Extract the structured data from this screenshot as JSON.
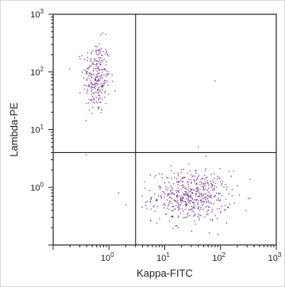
{
  "chart_data": {
    "type": "scatter",
    "title": "",
    "xlabel": "Kappa-FITC",
    "ylabel": "Lambda-PE",
    "x_scale": "log",
    "y_scale": "log",
    "xlim": [
      0.1,
      1000
    ],
    "ylim": [
      0.1,
      1000
    ],
    "grid": false,
    "x_ticks": [
      {
        "base": "10",
        "exp": "0",
        "value": 1
      },
      {
        "base": "10",
        "exp": "1",
        "value": 10
      },
      {
        "base": "10",
        "exp": "2",
        "value": 100
      },
      {
        "base": "10",
        "exp": "3",
        "value": 1000
      }
    ],
    "y_ticks": [
      {
        "base": "10",
        "exp": "0",
        "value": 1
      },
      {
        "base": "10",
        "exp": "1",
        "value": 10
      },
      {
        "base": "10",
        "exp": "2",
        "value": 100
      },
      {
        "base": "10",
        "exp": "3",
        "value": 1000
      }
    ],
    "quadrant_gates": {
      "x": 3.0,
      "y": 4.0
    },
    "point_color": "#7b3f8f",
    "populations": [
      {
        "x_center": 0.6,
        "y_center": 80,
        "x_log_spread": 0.12,
        "y_log_spread": 0.32,
        "count": 260
      },
      {
        "x_center": 30,
        "y_center": 0.7,
        "x_log_spread": 0.35,
        "y_log_spread": 0.22,
        "count": 520
      }
    ],
    "outliers": [
      {
        "x": 80,
        "y": 70
      },
      {
        "x": 40,
        "y": 5
      },
      {
        "x": 2,
        "y": 0.5
      },
      {
        "x": 3,
        "y": 0.15
      },
      {
        "x": 1.5,
        "y": 0.8
      },
      {
        "x": 55,
        "y": 3.5
      }
    ]
  }
}
